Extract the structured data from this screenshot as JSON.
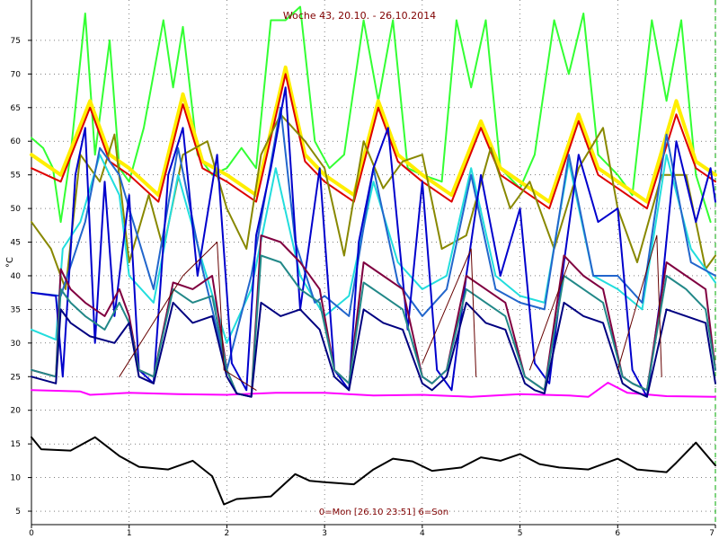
{
  "chart_data": {
    "type": "line",
    "title": "Woche 43, 20.10. - 26.10.2014",
    "footer": "0=Mon [26.10 23:51] 6=Son",
    "ylabel": "°C",
    "xlim": [
      0,
      7
    ],
    "ylim": [
      3,
      81
    ],
    "x_ticks": [
      "0",
      "1",
      "2",
      "3",
      "4",
      "5",
      "6",
      "7"
    ],
    "y_ticks": [
      "5",
      "10",
      "15",
      "20",
      "25",
      "30",
      "35",
      "40",
      "45",
      "50",
      "55",
      "60",
      "65",
      "70",
      "75"
    ],
    "grid": true,
    "series": [
      {
        "color": "#ff00ff",
        "width": 2,
        "x": [
          0,
          0.5,
          0.6,
          1.0,
          1.5,
          2.0,
          2.5,
          3.0,
          3.5,
          4.0,
          4.5,
          5.0,
          5.5,
          5.7,
          5.9,
          6.1,
          6.5,
          7.0
        ],
        "y": [
          23.0,
          22.8,
          22.3,
          22.6,
          22.4,
          22.3,
          22.6,
          22.6,
          22.2,
          22.3,
          22.0,
          22.4,
          22.2,
          22.0,
          24.1,
          22.6,
          22.1,
          22.0
        ]
      },
      {
        "color": "#000000",
        "width": 2,
        "x": [
          0,
          0.1,
          0.4,
          0.65,
          0.9,
          1.1,
          1.4,
          1.65,
          1.85,
          1.97,
          2.1,
          2.45,
          2.7,
          2.85,
          3.0,
          3.3,
          3.5,
          3.7,
          3.9,
          4.1,
          4.4,
          4.6,
          4.8,
          5.0,
          5.2,
          5.4,
          5.7,
          6.0,
          6.2,
          6.5,
          6.6,
          6.8,
          7.0
        ],
        "y": [
          16.0,
          14.2,
          14.0,
          16.0,
          13.2,
          11.6,
          11.2,
          12.5,
          10.2,
          6.0,
          6.8,
          7.2,
          10.5,
          9.5,
          9.3,
          9.0,
          11.2,
          12.8,
          12.4,
          11.0,
          11.5,
          13.0,
          12.5,
          13.5,
          12.0,
          11.5,
          11.2,
          12.8,
          11.2,
          10.8,
          12.2,
          15.2,
          11.8
        ]
      },
      {
        "color": "#33ff33",
        "width": 2,
        "x": [
          0,
          0.12,
          0.22,
          0.3,
          0.4,
          0.55,
          0.65,
          0.8,
          0.9,
          1.0,
          1.15,
          1.35,
          1.45,
          1.55,
          1.7,
          1.85,
          2.0,
          2.15,
          2.3,
          2.45,
          2.6,
          2.75,
          2.9,
          3.05,
          3.2,
          3.4,
          3.55,
          3.7,
          3.85,
          4.0,
          4.2,
          4.35,
          4.5,
          4.65,
          4.8,
          5.0,
          5.15,
          5.35,
          5.5,
          5.65,
          5.8,
          6.0,
          6.15,
          6.35,
          6.5,
          6.65,
          6.8,
          6.95
        ],
        "y": [
          60.5,
          59.0,
          56.0,
          48.0,
          58.0,
          79.0,
          58.0,
          75.0,
          56.0,
          54.0,
          62.0,
          78.0,
          68.0,
          77.0,
          58.0,
          55.0,
          56.0,
          59.0,
          56.0,
          78.0,
          78.0,
          80.0,
          60.0,
          56.0,
          58.0,
          78.0,
          66.0,
          78.0,
          56.0,
          55.0,
          54.0,
          78.0,
          68.0,
          78.0,
          56.0,
          53.0,
          58.0,
          78.0,
          70.0,
          79.0,
          58.0,
          55.0,
          52.0,
          78.0,
          66.0,
          78.0,
          55.0,
          48.0
        ]
      },
      {
        "color": "#ffee00",
        "width": 4,
        "x": [
          0,
          0.3,
          0.6,
          0.8,
          1.0,
          1.3,
          1.55,
          1.75,
          2.0,
          2.3,
          2.6,
          2.8,
          3.0,
          3.3,
          3.55,
          3.75,
          4.0,
          4.3,
          4.6,
          4.8,
          5.0,
          5.3,
          5.6,
          5.8,
          6.0,
          6.3,
          6.6,
          6.8,
          7.0
        ],
        "y": [
          58.0,
          55.0,
          66.0,
          58.0,
          56.0,
          52.0,
          67.0,
          57.0,
          55.0,
          52.0,
          71.0,
          58.0,
          55.0,
          52.0,
          66.0,
          58.0,
          55.0,
          52.0,
          63.0,
          56.0,
          54.0,
          51.0,
          64.0,
          56.0,
          54.0,
          51.0,
          66.0,
          57.0,
          55.0
        ]
      },
      {
        "color": "#dd0000",
        "width": 2,
        "x": [
          0,
          0.3,
          0.6,
          0.8,
          1.0,
          1.3,
          1.55,
          1.75,
          2.0,
          2.3,
          2.6,
          2.8,
          3.0,
          3.3,
          3.55,
          3.75,
          4.0,
          4.3,
          4.6,
          4.8,
          5.0,
          5.3,
          5.6,
          5.8,
          6.0,
          6.3,
          6.6,
          6.8,
          7.0
        ],
        "y": [
          56.0,
          54.0,
          65.0,
          57.0,
          55.0,
          51.0,
          65.5,
          56.0,
          54.0,
          51.0,
          70.0,
          57.0,
          54.0,
          51.0,
          65.0,
          57.0,
          54.0,
          51.0,
          62.0,
          55.0,
          53.0,
          50.0,
          63.0,
          55.0,
          53.0,
          50.0,
          64.0,
          56.0,
          54.0
        ]
      },
      {
        "color": "#888800",
        "width": 2,
        "x": [
          0,
          0.2,
          0.35,
          0.5,
          0.7,
          0.85,
          1.0,
          1.2,
          1.35,
          1.55,
          1.8,
          2.0,
          2.2,
          2.35,
          2.55,
          2.8,
          3.0,
          3.2,
          3.4,
          3.6,
          3.8,
          4.0,
          4.2,
          4.45,
          4.7,
          4.9,
          5.1,
          5.35,
          5.6,
          5.85,
          6.0,
          6.2,
          6.45,
          6.7,
          6.9,
          7.0
        ],
        "y": [
          48.0,
          44.0,
          38.0,
          58.0,
          54.0,
          61.0,
          42.0,
          52.0,
          44.0,
          58.0,
          60.0,
          50.0,
          44.0,
          58.0,
          64.0,
          60.0,
          56.0,
          43.0,
          60.0,
          53.0,
          57.0,
          58.0,
          44.0,
          46.0,
          59.0,
          50.0,
          54.0,
          44.0,
          56.0,
          62.0,
          50.0,
          42.0,
          55.0,
          55.0,
          41.0,
          43.0
        ]
      },
      {
        "color": "#22dddd",
        "width": 2,
        "x": [
          0,
          0.25,
          0.32,
          0.5,
          0.7,
          0.9,
          1.0,
          1.25,
          1.5,
          1.75,
          2.0,
          2.25,
          2.5,
          2.75,
          3.0,
          3.25,
          3.5,
          3.75,
          4.0,
          4.25,
          4.5,
          4.75,
          5.0,
          5.25,
          5.5,
          5.75,
          6.0,
          6.25,
          6.5,
          6.75,
          7.0
        ],
        "y": [
          32.0,
          30.5,
          44.0,
          48.0,
          58.0,
          52.0,
          40.0,
          36.0,
          55.0,
          42.0,
          30.0,
          38.0,
          56.0,
          40.0,
          34.0,
          37.0,
          54.0,
          42.0,
          38.0,
          40.0,
          56.0,
          40.0,
          37.0,
          36.0,
          57.0,
          40.0,
          38.0,
          35.0,
          58.0,
          44.0,
          39.0
        ]
      },
      {
        "color": "#2266cc",
        "width": 2,
        "x": [
          0,
          0.3,
          0.55,
          0.7,
          0.9,
          1.0,
          1.25,
          1.5,
          1.75,
          2.0,
          2.25,
          2.55,
          2.7,
          2.9,
          3.0,
          3.25,
          3.5,
          3.75,
          4.0,
          4.25,
          4.5,
          4.75,
          5.0,
          5.25,
          5.5,
          5.75,
          6.0,
          6.25,
          6.5,
          6.75,
          7.0
        ],
        "y": [
          37.5,
          37.0,
          48.0,
          59.0,
          55.0,
          50.0,
          38.0,
          59.0,
          41.0,
          26.0,
          40.0,
          65.0,
          45.0,
          36.0,
          37.0,
          34.0,
          56.0,
          39.0,
          34.0,
          38.0,
          55.0,
          38.0,
          36.0,
          35.0,
          58.0,
          40.0,
          40.0,
          36.0,
          61.0,
          42.0,
          40.0
        ]
      },
      {
        "color": "#0000cc",
        "width": 2,
        "x": [
          0,
          0.25,
          0.32,
          0.45,
          0.55,
          0.65,
          0.75,
          0.85,
          1.0,
          1.1,
          1.25,
          1.4,
          1.55,
          1.7,
          1.9,
          2.05,
          2.2,
          2.3,
          2.45,
          2.6,
          2.75,
          2.95,
          3.1,
          3.25,
          3.35,
          3.5,
          3.65,
          3.85,
          4.0,
          4.15,
          4.3,
          4.45,
          4.6,
          4.8,
          5.0,
          5.15,
          5.3,
          5.45,
          5.6,
          5.8,
          6.0,
          6.15,
          6.3,
          6.45,
          6.6,
          6.8,
          6.95,
          7.0
        ],
        "y": [
          37.5,
          37.0,
          25.0,
          55.0,
          62.0,
          30.0,
          54.0,
          34.0,
          52.0,
          26.0,
          24.0,
          55.0,
          62.0,
          40.0,
          58.0,
          27.0,
          23.0,
          46.0,
          56.0,
          68.0,
          35.0,
          56.0,
          26.0,
          23.0,
          45.0,
          56.0,
          62.0,
          32.0,
          54.0,
          26.0,
          23.0,
          40.0,
          55.0,
          40.0,
          50.0,
          27.0,
          24.0,
          42.0,
          58.0,
          48.0,
          50.0,
          26.0,
          22.0,
          38.0,
          60.0,
          48.0,
          56.0,
          51.0
        ]
      },
      {
        "color": "#800040",
        "width": 2,
        "x": [
          0,
          0.25,
          0.3,
          0.4,
          0.55,
          0.75,
          0.9,
          1.0,
          1.1,
          1.25,
          1.45,
          1.65,
          1.85,
          2.0,
          2.1,
          2.25,
          2.35,
          2.55,
          2.75,
          2.95,
          3.1,
          3.25,
          3.4,
          3.6,
          3.8,
          4.0,
          4.1,
          4.25,
          4.45,
          4.65,
          4.85,
          5.05,
          5.15,
          5.25,
          5.45,
          5.65,
          5.85,
          6.05,
          6.15,
          6.3,
          6.5,
          6.7,
          6.9,
          7.0
        ],
        "y": [
          26.0,
          25.0,
          41.0,
          38.0,
          36.0,
          34.0,
          38.0,
          34.0,
          26.0,
          25.0,
          39.0,
          38.0,
          40.0,
          26.0,
          22.5,
          22.0,
          46.0,
          45.0,
          42.0,
          38.0,
          26.0,
          24.0,
          42.0,
          40.0,
          38.0,
          25.0,
          24.0,
          26.0,
          40.0,
          38.0,
          36.0,
          25.0,
          24.0,
          23.0,
          43.0,
          40.0,
          38.0,
          25.0,
          24.0,
          23.0,
          42.0,
          40.0,
          38.0,
          26.0
        ]
      },
      {
        "color": "#228888",
        "width": 2,
        "x": [
          0,
          0.25,
          0.3,
          0.4,
          0.55,
          0.75,
          0.9,
          1.0,
          1.1,
          1.25,
          1.45,
          1.65,
          1.85,
          2.0,
          2.1,
          2.25,
          2.35,
          2.55,
          2.75,
          2.95,
          3.1,
          3.25,
          3.4,
          3.6,
          3.8,
          4.0,
          4.1,
          4.25,
          4.45,
          4.65,
          4.85,
          5.05,
          5.15,
          5.25,
          5.45,
          5.65,
          5.85,
          6.05,
          6.15,
          6.3,
          6.5,
          6.7,
          6.9,
          7.0
        ],
        "y": [
          26.0,
          25.0,
          38.0,
          36.0,
          34.0,
          32.0,
          36.0,
          33.0,
          26.0,
          25.0,
          38.0,
          36.0,
          37.0,
          26.0,
          22.5,
          22.0,
          43.0,
          42.0,
          38.0,
          36.0,
          26.0,
          24.0,
          39.0,
          37.0,
          35.0,
          25.0,
          24.0,
          26.0,
          38.0,
          36.0,
          34.0,
          25.0,
          24.0,
          23.0,
          40.0,
          38.0,
          36.0,
          25.0,
          24.0,
          23.0,
          40.0,
          38.0,
          35.0,
          26.0
        ]
      },
      {
        "color": "#000080",
        "width": 2,
        "x": [
          0,
          0.25,
          0.3,
          0.4,
          0.6,
          0.85,
          1.0,
          1.1,
          1.25,
          1.45,
          1.65,
          1.85,
          2.0,
          2.1,
          2.25,
          2.35,
          2.55,
          2.75,
          2.95,
          3.1,
          3.25,
          3.4,
          3.6,
          3.8,
          4.0,
          4.1,
          4.25,
          4.45,
          4.65,
          4.85,
          5.05,
          5.15,
          5.25,
          5.45,
          5.65,
          5.85,
          6.05,
          6.15,
          6.3,
          6.5,
          6.7,
          6.9,
          7.0
        ],
        "y": [
          25.0,
          24.0,
          35.0,
          33.0,
          31.0,
          30.0,
          33.0,
          25.0,
          24.0,
          36.0,
          33.0,
          34.0,
          25.0,
          22.5,
          22.0,
          36.0,
          34.0,
          35.0,
          32.0,
          25.0,
          23.0,
          35.0,
          33.0,
          32.0,
          24.0,
          23.0,
          25.0,
          36.0,
          33.0,
          32.0,
          24.0,
          23.0,
          22.5,
          36.0,
          34.0,
          33.0,
          24.0,
          23.0,
          22.0,
          35.0,
          34.0,
          33.0,
          24.0
        ]
      },
      {
        "color": "#660000",
        "width": 1,
        "x": [
          0.9,
          1.55,
          1.9,
          1.97,
          2.3
        ],
        "y": [
          25.0,
          40.0,
          45.0,
          26.0,
          23.0
        ]
      },
      {
        "color": "#660000",
        "width": 1,
        "x": [
          4.0,
          4.5,
          4.55
        ],
        "y": [
          27.0,
          44.0,
          25.0
        ]
      },
      {
        "color": "#660000",
        "width": 1,
        "x": [
          5.1,
          5.5
        ],
        "y": [
          26.0,
          42.0
        ]
      },
      {
        "color": "#660000",
        "width": 1,
        "x": [
          6.0,
          6.4,
          6.45
        ],
        "y": [
          26.0,
          46.0,
          25.0
        ]
      }
    ]
  }
}
